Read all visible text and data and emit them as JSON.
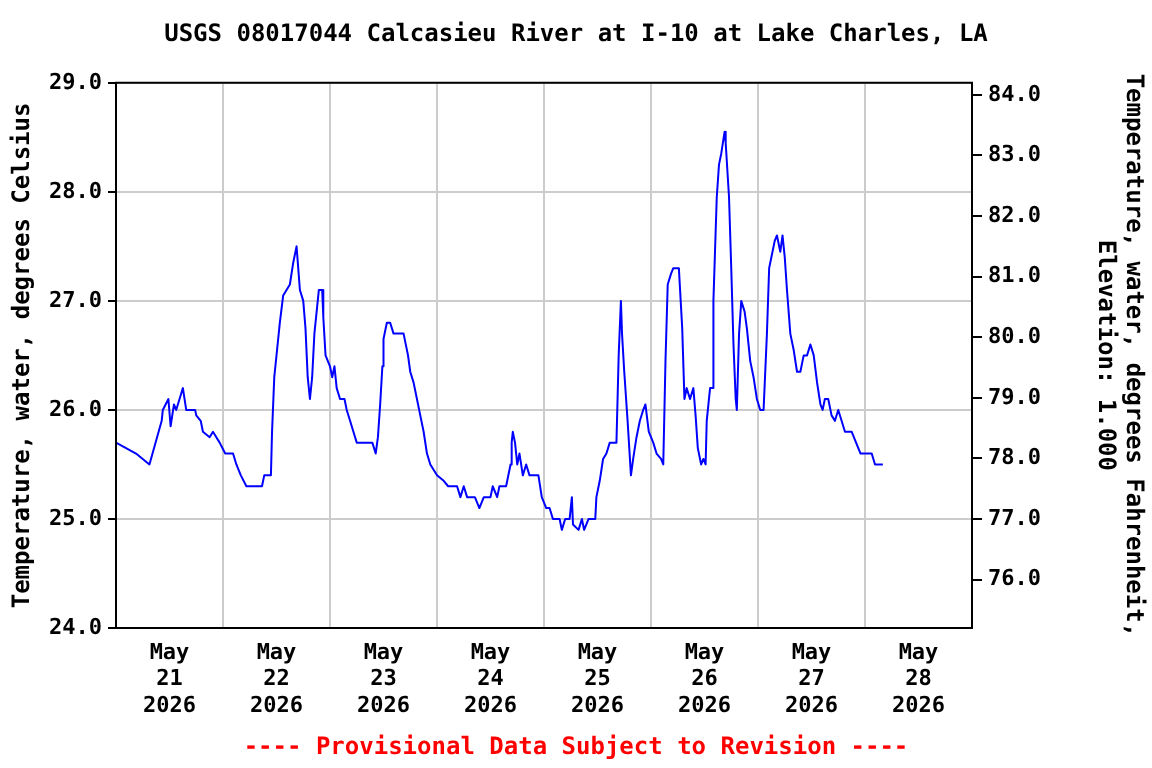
{
  "chart_data": {
    "type": "line",
    "title": "USGS 08017044 Calcasieu River at I-10 at Lake Charles, LA",
    "ylabel": "Temperature, water, degrees Celsius",
    "y2label": "Temperature, water, degrees Fahrenheit,\nElevation: 1.000",
    "annotations": [
      "---- Provisional Data Subject to Revision ----"
    ],
    "x": [
      "2026-05-20T12:00",
      "2026-05-20T16:30",
      "2026-05-20T19:30",
      "2026-05-20T22:15",
      "2026-05-20T22:30",
      "2026-05-20T23:45",
      "2026-05-21T00:15",
      "2026-05-21T01:00",
      "2026-05-21T01:30",
      "2026-05-21T02:15",
      "2026-05-21T03:00",
      "2026-05-21T03:45",
      "2026-05-21T05:45",
      "2026-05-21T06:00",
      "2026-05-21T07:00",
      "2026-05-21T07:30",
      "2026-05-21T09:00",
      "2026-05-21T09:45",
      "2026-05-21T10:30",
      "2026-05-21T11:15",
      "2026-05-21T12:30",
      "2026-05-21T14:15",
      "2026-05-21T15:00",
      "2026-05-21T16:00",
      "2026-05-21T17:15",
      "2026-05-21T20:45",
      "2026-05-21T21:15",
      "2026-05-21T22:45",
      "2026-05-21T23:00",
      "2026-05-21T23:30",
      "2026-05-22T00:00",
      "2026-05-22T00:45",
      "2026-05-22T01:30",
      "2026-05-22T02:15",
      "2026-05-22T03:00",
      "2026-05-22T03:45",
      "2026-05-22T04:30",
      "2026-05-22T05:15",
      "2026-05-22T06:00",
      "2026-05-22T06:30",
      "2026-05-22T07:00",
      "2026-05-22T07:30",
      "2026-05-22T08:00",
      "2026-05-22T08:30",
      "2026-05-22T09:00",
      "2026-05-22T09:30",
      "2026-05-22T10:15",
      "2026-05-22T10:30",
      "2026-05-22T11:00",
      "2026-05-22T12:00",
      "2026-05-22T12:30",
      "2026-05-22T13:00",
      "2026-05-22T13:30",
      "2026-05-22T14:15",
      "2026-05-22T15:15",
      "2026-05-22T15:45",
      "2026-05-22T16:30",
      "2026-05-22T17:15",
      "2026-05-22T18:00",
      "2026-05-22T21:30",
      "2026-05-22T22:15",
      "2026-05-22T22:45",
      "2026-05-22T23:15",
      "2026-05-22T23:45",
      "2026-05-23T00:00",
      "2026-05-23T00:45",
      "2026-05-23T01:30",
      "2026-05-23T02:15",
      "2026-05-23T04:30",
      "2026-05-23T05:30",
      "2026-05-23T06:00",
      "2026-05-23T06:45",
      "2026-05-23T07:30",
      "2026-05-23T08:15",
      "2026-05-23T09:00",
      "2026-05-23T09:45",
      "2026-05-23T10:30",
      "2026-05-23T12:00",
      "2026-05-23T13:30",
      "2026-05-23T14:30",
      "2026-05-23T16:30",
      "2026-05-23T17:15",
      "2026-05-23T18:00",
      "2026-05-23T18:45",
      "2026-05-23T20:30",
      "2026-05-23T21:30",
      "2026-05-23T22:30",
      "2026-05-24T00:00",
      "2026-05-24T00:30",
      "2026-05-24T01:30",
      "2026-05-24T02:00",
      "2026-05-24T03:30",
      "2026-05-24T04:30",
      "2026-05-24T04:45",
      "2026-05-24T05:00",
      "2026-05-24T05:30",
      "2026-05-24T06:00",
      "2026-05-24T06:30",
      "2026-05-24T07:15",
      "2026-05-24T08:00",
      "2026-05-24T08:45",
      "2026-05-24T10:45",
      "2026-05-24T11:30",
      "2026-05-24T12:30",
      "2026-05-24T13:15",
      "2026-05-24T14:00",
      "2026-05-24T15:30",
      "2026-05-24T16:00",
      "2026-05-24T16:45",
      "2026-05-24T17:45",
      "2026-05-24T18:15",
      "2026-05-24T18:30",
      "2026-05-24T19:45",
      "2026-05-24T20:30",
      "2026-05-24T21:00",
      "2026-05-24T22:00",
      "2026-05-24T23:30",
      "2026-05-24T23:45",
      "2026-05-25T00:30",
      "2026-05-25T01:15",
      "2026-05-25T02:00",
      "2026-05-25T02:45",
      "2026-05-25T04:15",
      "2026-05-25T04:45",
      "2026-05-25T05:15",
      "2026-05-25T05:30",
      "2026-05-25T06:00",
      "2026-05-25T06:45",
      "2026-05-25T07:30",
      "2026-05-25T08:00",
      "2026-05-25T08:45",
      "2026-05-25T09:30",
      "2026-05-25T10:15",
      "2026-05-25T10:45",
      "2026-05-25T11:30",
      "2026-05-25T12:30",
      "2026-05-25T13:15",
      "2026-05-25T14:15",
      "2026-05-25T14:45",
      "2026-05-25T15:15",
      "2026-05-25T15:45",
      "2026-05-25T16:30",
      "2026-05-25T17:00",
      "2026-05-25T18:15",
      "2026-05-25T19:00",
      "2026-05-25T19:30",
      "2026-05-25T20:00",
      "2026-05-25T20:45",
      "2026-05-25T21:30",
      "2026-05-25T22:00",
      "2026-05-25T22:30",
      "2026-05-25T23:15",
      "2026-05-25T23:45",
      "2026-05-26T00:15",
      "2026-05-26T00:30",
      "2026-05-26T01:15",
      "2026-05-26T01:45",
      "2026-05-26T02:00",
      "2026-05-26T02:45",
      "2026-05-26T03:15",
      "2026-05-26T03:45",
      "2026-05-26T04:30",
      "2026-05-26T04:45",
      "2026-05-26T05:30",
      "2026-05-26T06:00",
      "2026-05-26T06:30",
      "2026-05-26T07:00",
      "2026-05-26T07:15",
      "2026-05-26T07:45",
      "2026-05-26T08:15",
      "2026-05-26T09:00",
      "2026-05-26T09:30",
      "2026-05-26T10:15",
      "2026-05-26T11:00",
      "2026-05-26T11:45",
      "2026-05-26T12:30",
      "2026-05-26T13:15",
      "2026-05-26T14:00",
      "2026-05-26T14:30",
      "2026-05-26T15:00",
      "2026-05-26T15:45",
      "2026-05-26T16:15",
      "2026-05-26T17:00",
      "2026-05-26T17:30",
      "2026-05-26T18:00",
      "2026-05-26T18:30",
      "2026-05-26T19:15",
      "2026-05-26T20:00",
      "2026-05-26T20:45",
      "2026-05-26T21:30",
      "2026-05-26T22:15",
      "2026-05-26T23:00",
      "2026-05-26T23:45",
      "2026-05-27T00:30",
      "2026-05-27T01:15",
      "2026-05-27T02:00",
      "2026-05-27T02:30",
      "2026-05-27T03:00",
      "2026-05-27T03:45",
      "2026-05-27T04:30",
      "2026-05-27T05:15",
      "2026-05-27T06:00",
      "2026-05-27T06:45",
      "2026-05-27T07:30",
      "2026-05-27T09:00",
      "2026-05-27T10:00",
      "2026-05-27T11:00",
      "2026-05-27T13:30",
      "2026-05-27T14:15",
      "2026-05-27T16:00"
    ],
    "series": [
      {
        "color": "#0000ff",
        "values": [
          25.7,
          25.6,
          25.5,
          25.9,
          26.0,
          26.1,
          25.85,
          26.05,
          26.0,
          26.1,
          26.2,
          26.0,
          26.0,
          25.95,
          25.9,
          25.8,
          25.75,
          25.8,
          25.75,
          25.7,
          25.6,
          25.6,
          25.5,
          25.4,
          25.3,
          25.3,
          25.4,
          25.4,
          25.8,
          26.3,
          26.5,
          26.8,
          27.05,
          27.1,
          27.15,
          27.35,
          27.5,
          27.1,
          27.0,
          26.75,
          26.3,
          26.1,
          26.3,
          26.7,
          26.9,
          27.1,
          27.1,
          26.85,
          26.5,
          26.4,
          26.3,
          26.4,
          26.2,
          26.1,
          26.1,
          26.0,
          25.9,
          25.8,
          25.7,
          25.7,
          25.6,
          25.75,
          26.05,
          26.4,
          26.65,
          26.8,
          26.8,
          26.7,
          26.7,
          26.5,
          26.35,
          26.25,
          26.1,
          25.95,
          25.8,
          25.6,
          25.5,
          25.4,
          25.35,
          25.3,
          25.3,
          25.2,
          25.3,
          25.2,
          25.2,
          25.1,
          25.2,
          25.2,
          25.3,
          25.2,
          25.3,
          25.3,
          25.5,
          25.7,
          25.8,
          25.7,
          25.5,
          25.6,
          25.4,
          25.5,
          25.4,
          25.4,
          25.2,
          25.1,
          25.1,
          25.0,
          25.0,
          24.9,
          25.0,
          25.0,
          25.2,
          24.95,
          24.9,
          25.0,
          24.9,
          25.0,
          25.0,
          25.2,
          25.35,
          25.55,
          25.6,
          25.7,
          25.7,
          26.5,
          27.0,
          26.7,
          26.35,
          25.9,
          25.4,
          25.55,
          25.75,
          25.9,
          26.0,
          26.05,
          25.8,
          25.7,
          25.6,
          25.55,
          25.5,
          26.45,
          27.15,
          27.25,
          27.3,
          27.3,
          26.75,
          26.1,
          26.2,
          26.1,
          26.2,
          25.95,
          25.65,
          25.5,
          25.55,
          25.5,
          25.9,
          26.2,
          26.2,
          27.0,
          27.95,
          28.25,
          28.35,
          28.55,
          28.45,
          27.95,
          27.3,
          26.6,
          26.1,
          26.0,
          26.7,
          27.0,
          26.9,
          26.75,
          26.45,
          26.3,
          26.1,
          26.0,
          26.0,
          26.7,
          27.3,
          27.4,
          27.55,
          27.6,
          27.45,
          27.6,
          27.4,
          27.1,
          26.7,
          26.55,
          26.35,
          26.35,
          26.5,
          26.5,
          26.6,
          26.5,
          26.25,
          26.05,
          26.0,
          26.1,
          26.1,
          25.95,
          25.9,
          26.0,
          25.9,
          25.8,
          25.8,
          25.7,
          25.6,
          25.6,
          25.5,
          25.5
        ]
      }
    ],
    "xlim": [
      "2026-05-20T12:00",
      "2026-05-28T12:00"
    ],
    "xticks": [
      {
        "value": "2026-05-21T00:00",
        "label": "May 21 2026"
      },
      {
        "value": "2026-05-21T12:00",
        "label": null
      },
      {
        "value": "2026-05-22T00:00",
        "label": "May 22 2026"
      },
      {
        "value": "2026-05-22T12:00",
        "label": null
      },
      {
        "value": "2026-05-23T00:00",
        "label": "May 23 2026"
      },
      {
        "value": "2026-05-23T12:00",
        "label": null
      },
      {
        "value": "2026-05-24T00:00",
        "label": "May 24 2026"
      },
      {
        "value": "2026-05-24T12:00",
        "label": null
      },
      {
        "value": "2026-05-25T00:00",
        "label": "May 25 2026"
      },
      {
        "value": "2026-05-25T12:00",
        "label": null
      },
      {
        "value": "2026-05-26T00:00",
        "label": "May 26 2026"
      },
      {
        "value": "2026-05-26T12:00",
        "label": null
      },
      {
        "value": "2026-05-27T00:00",
        "label": "May 27 2026"
      },
      {
        "value": "2026-05-27T12:00",
        "label": null
      },
      {
        "value": "2026-05-28T00:00",
        "label": "May 28 2026"
      }
    ],
    "ylim": [
      24,
      29
    ],
    "yticks": [
      {
        "value": 24,
        "label": "24.0"
      },
      {
        "value": 25,
        "label": "25.0"
      },
      {
        "value": 26,
        "label": "26.0"
      },
      {
        "value": 27,
        "label": "27.0"
      },
      {
        "value": 28,
        "label": "28.0"
      },
      {
        "value": 29,
        "label": "29.0"
      }
    ],
    "y2lim": [
      75.2,
      84.2
    ],
    "y2ticks": [
      {
        "value": 76,
        "label": "76.0"
      },
      {
        "value": 77,
        "label": "77.0"
      },
      {
        "value": 78,
        "label": "78.0"
      },
      {
        "value": 79,
        "label": "79.0"
      },
      {
        "value": 80,
        "label": "80.0"
      },
      {
        "value": 81,
        "label": "81.0"
      },
      {
        "value": 82,
        "label": "82.0"
      },
      {
        "value": 83,
        "label": "83.0"
      },
      {
        "value": 84,
        "label": "84.0"
      }
    ],
    "grid": true,
    "legend": false,
    "marker": "none",
    "line_style": "solid"
  }
}
